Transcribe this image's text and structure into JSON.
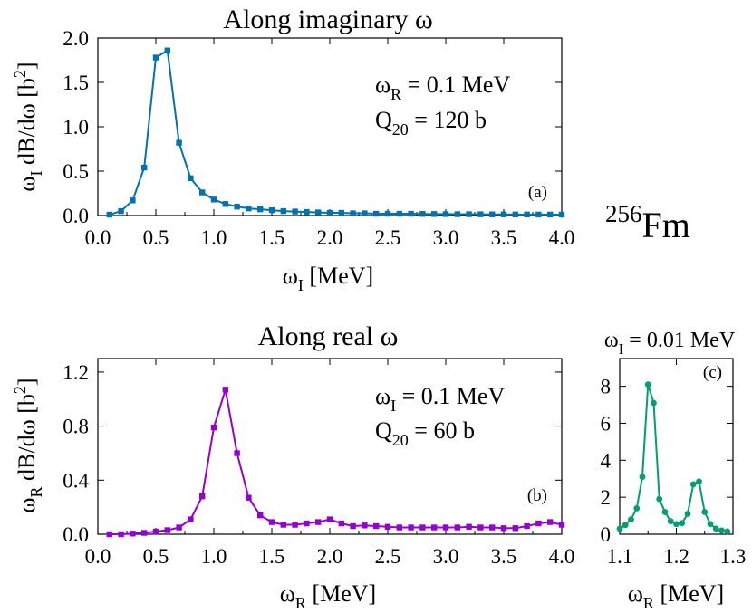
{
  "nuclide": {
    "mass": "256",
    "symbol": "Fm"
  },
  "chart_data": [
    {
      "id": "a",
      "type": "line",
      "title": "Along imaginary ω",
      "panel_label": "(a)",
      "xlabel": {
        "base": "ω",
        "sub": "I",
        "rest": " [MeV]"
      },
      "ylabel": {
        "pre": "ω",
        "sub": "I",
        "mid": " dB/dω [b",
        "sup": "2",
        "post": "]"
      },
      "annotations": [
        {
          "base": "ω",
          "sub": "R",
          "rest": " = 0.1 MeV"
        },
        {
          "base": "Q",
          "sub": "20",
          "rest": " = 120 b"
        }
      ],
      "xlim": [
        0,
        4.0
      ],
      "ylim": [
        0,
        2.0
      ],
      "xticks": [
        "0.0",
        "0.5",
        "1.0",
        "1.5",
        "2.0",
        "2.5",
        "3.0",
        "3.5",
        "4.0"
      ],
      "yticks": [
        "0.0",
        "0.5",
        "1.0",
        "1.5",
        "2.0"
      ],
      "color": "#0072b2",
      "marker": "square",
      "x": [
        0.1,
        0.2,
        0.3,
        0.4,
        0.5,
        0.6,
        0.7,
        0.8,
        0.9,
        1.0,
        1.1,
        1.2,
        1.3,
        1.4,
        1.5,
        1.6,
        1.7,
        1.8,
        1.9,
        2.0,
        2.1,
        2.2,
        2.3,
        2.4,
        2.5,
        2.6,
        2.7,
        2.8,
        2.9,
        3.0,
        3.1,
        3.2,
        3.3,
        3.4,
        3.5,
        3.6,
        3.7,
        3.8,
        3.9,
        4.0
      ],
      "y": [
        0.01,
        0.05,
        0.17,
        0.54,
        1.78,
        1.86,
        0.82,
        0.42,
        0.26,
        0.18,
        0.13,
        0.1,
        0.08,
        0.07,
        0.06,
        0.05,
        0.045,
        0.04,
        0.035,
        0.03,
        0.03,
        0.025,
        0.025,
        0.02,
        0.02,
        0.02,
        0.02,
        0.018,
        0.017,
        0.016,
        0.015,
        0.015,
        0.014,
        0.013,
        0.013,
        0.012,
        0.012,
        0.011,
        0.011,
        0.01
      ]
    },
    {
      "id": "b",
      "type": "line",
      "title": "Along real ω",
      "panel_label": "(b)",
      "xlabel": {
        "base": "ω",
        "sub": "R",
        "rest": " [MeV]"
      },
      "ylabel": {
        "pre": "ω",
        "sub": "R",
        "mid": " dB/dω  [b",
        "sup": "2",
        "post": "]"
      },
      "annotations": [
        {
          "base": "ω",
          "sub": "I",
          "rest": " = 0.1 MeV"
        },
        {
          "base": "Q",
          "sub": "20",
          "rest": " = 60 b"
        }
      ],
      "xlim": [
        0,
        4.0
      ],
      "ylim": [
        0,
        1.3
      ],
      "xticks": [
        "0.0",
        "0.5",
        "1.0",
        "1.5",
        "2.0",
        "2.5",
        "3.0",
        "3.5",
        "4.0"
      ],
      "yticks": [
        "0.0",
        "0.4",
        "0.8",
        "1.2"
      ],
      "ytick_values": [
        0,
        0.4,
        0.8,
        1.2
      ],
      "color": "#9400d3",
      "marker": "square",
      "x": [
        0.1,
        0.2,
        0.3,
        0.4,
        0.5,
        0.6,
        0.7,
        0.8,
        0.9,
        1.0,
        1.1,
        1.2,
        1.3,
        1.4,
        1.5,
        1.6,
        1.7,
        1.8,
        1.9,
        2.0,
        2.1,
        2.2,
        2.3,
        2.4,
        2.5,
        2.6,
        2.7,
        2.8,
        2.9,
        3.0,
        3.1,
        3.2,
        3.3,
        3.4,
        3.5,
        3.6,
        3.7,
        3.8,
        3.9,
        4.0
      ],
      "y": [
        0.0,
        0.0,
        0.005,
        0.01,
        0.02,
        0.03,
        0.05,
        0.11,
        0.28,
        0.79,
        1.07,
        0.6,
        0.27,
        0.14,
        0.09,
        0.07,
        0.07,
        0.08,
        0.09,
        0.11,
        0.08,
        0.06,
        0.065,
        0.06,
        0.055,
        0.05,
        0.05,
        0.05,
        0.05,
        0.05,
        0.05,
        0.055,
        0.05,
        0.05,
        0.045,
        0.045,
        0.06,
        0.08,
        0.09,
        0.07
      ]
    },
    {
      "id": "c",
      "type": "line",
      "title": {
        "base": "ω",
        "sub": "I",
        "rest": " = 0.01 MeV"
      },
      "panel_label": "(c)",
      "xlabel": {
        "base": "ω",
        "sub": "R",
        "rest": " [MeV]"
      },
      "xlim": [
        1.1,
        1.3
      ],
      "ylim": [
        0,
        9.5
      ],
      "xticks": [
        "1.1",
        "1.2",
        "1.3"
      ],
      "xtick_values": [
        1.1,
        1.2,
        1.3
      ],
      "yticks": [
        "0",
        "2",
        "4",
        "6",
        "8"
      ],
      "ytick_values": [
        0,
        2,
        4,
        6,
        8
      ],
      "color": "#009e73",
      "marker": "circle",
      "x": [
        1.1,
        1.11,
        1.12,
        1.13,
        1.14,
        1.15,
        1.16,
        1.17,
        1.18,
        1.19,
        1.2,
        1.21,
        1.22,
        1.23,
        1.24,
        1.25,
        1.26,
        1.27,
        1.28,
        1.29
      ],
      "y": [
        0.3,
        0.5,
        0.8,
        1.4,
        3.1,
        8.1,
        7.1,
        1.9,
        1.2,
        0.7,
        0.55,
        0.6,
        1.1,
        2.7,
        2.85,
        1.2,
        0.55,
        0.3,
        0.2,
        0.15
      ]
    }
  ]
}
